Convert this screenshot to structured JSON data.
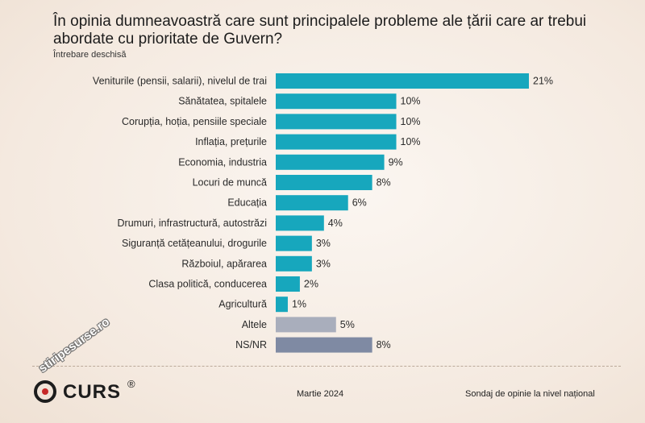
{
  "title": "În opinia dumneavoastră care sunt principalele probleme ale țării care ar trebui abordate cu prioritate de Guvern?",
  "subtitle": "Întrebare deschisă",
  "footer": {
    "date": "Martie 2024",
    "survey": "Sondaj de opinie la nivel național",
    "logo": "CURS",
    "logo_mark": "®",
    "watermark": "stiripesurse.ro"
  },
  "colors": {
    "primary_bar": "#17a7bd",
    "other_bar": "#a9aebc",
    "nsnr_bar": "#7f8aa3"
  },
  "chart_data": {
    "type": "bar",
    "orientation": "horizontal",
    "title": "În opinia dumneavoastră care sunt principalele probleme ale țării care ar trebui abordate cu prioritate de Guvern?",
    "categories": [
      "Veniturile (pensii, salarii), nivelul de trai",
      "Sănătatea, spitalele",
      "Corupția, hoția, pensiile speciale",
      "Inflația, prețurile",
      "Economia, industria",
      "Locuri de muncă",
      "Educația",
      "Drumuri, infrastructură, autostrăzi",
      "Siguranță cetățeanului, drogurile",
      "Războiul, apărarea",
      "Clasa politică, conducerea",
      "Agricultură",
      "Altele",
      "NS/NR"
    ],
    "values": [
      21,
      10,
      10,
      10,
      9,
      8,
      6,
      4,
      3,
      3,
      2,
      1,
      5,
      8
    ],
    "value_labels": [
      "21%",
      "10%",
      "10%",
      "10%",
      "9%",
      "8%",
      "6%",
      "4%",
      "3%",
      "3%",
      "2%",
      "1%",
      "5%",
      "8%"
    ],
    "bar_colors": [
      "primary",
      "primary",
      "primary",
      "primary",
      "primary",
      "primary",
      "primary",
      "primary",
      "primary",
      "primary",
      "primary",
      "primary",
      "other",
      "nsnr"
    ],
    "xlim": [
      0,
      21
    ],
    "grid": false,
    "legend": "none"
  }
}
